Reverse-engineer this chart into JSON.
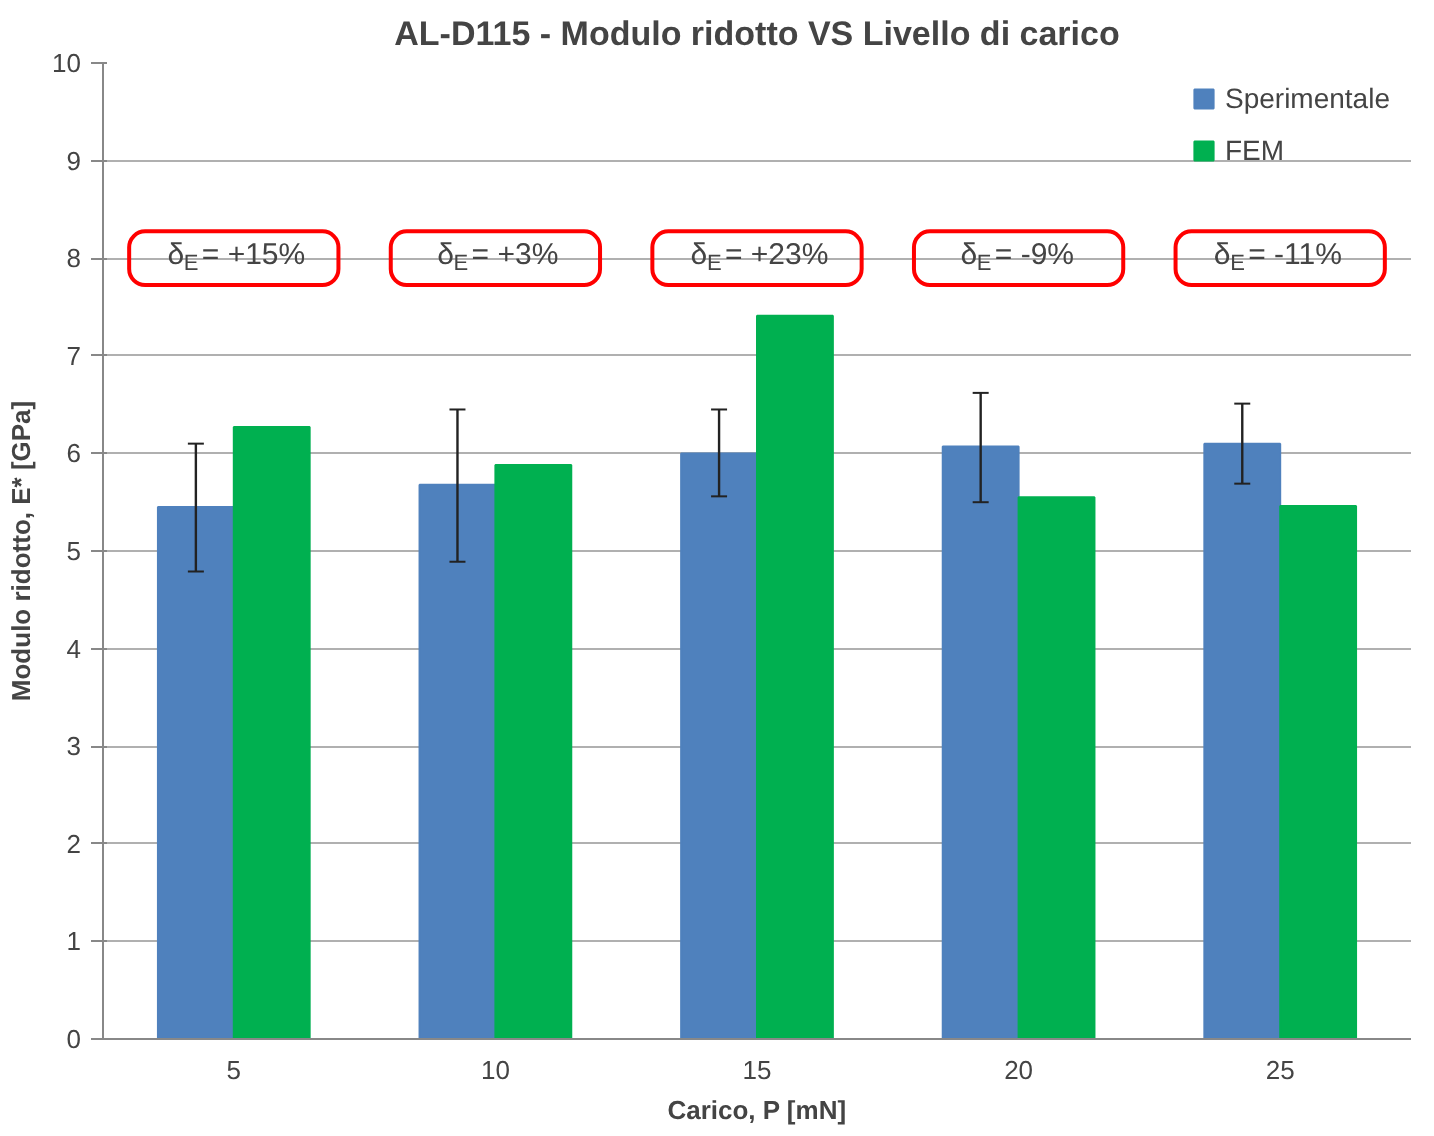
{
  "chart_data": {
    "type": "bar",
    "title": "AL-D115 - Modulo ridotto VS Livello di carico",
    "xlabel": "Carico, P [mN]",
    "ylabel": "Modulo ridotto, E* [GPa]",
    "categories": [
      "5",
      "10",
      "15",
      "20",
      "25"
    ],
    "series": [
      {
        "name": "Sperimentale",
        "color": "#4f81bd",
        "values": [
          5.45,
          5.68,
          6.0,
          6.07,
          6.1
        ],
        "errors": [
          [
            4.79,
            6.1
          ],
          [
            4.89,
            6.45
          ],
          [
            5.56,
            6.45
          ],
          [
            5.5,
            6.62
          ],
          [
            5.69,
            6.51
          ]
        ]
      },
      {
        "name": "FEM",
        "color": "#00b050",
        "values": [
          6.27,
          5.88,
          7.41,
          5.55,
          5.46
        ]
      }
    ],
    "annotations": [
      "δ$_{E}$= +15%",
      "δ$_{E}$= +3%",
      "δ$_{E}$= +23%",
      "δ$_{E}$= -9%",
      "δ$_{E}$= -11%"
    ],
    "ylim": [
      0,
      10
    ],
    "yticks": [
      0,
      1,
      2,
      3,
      4,
      5,
      6,
      7,
      8,
      9,
      10
    ],
    "grid": "y",
    "legend": "top right"
  }
}
